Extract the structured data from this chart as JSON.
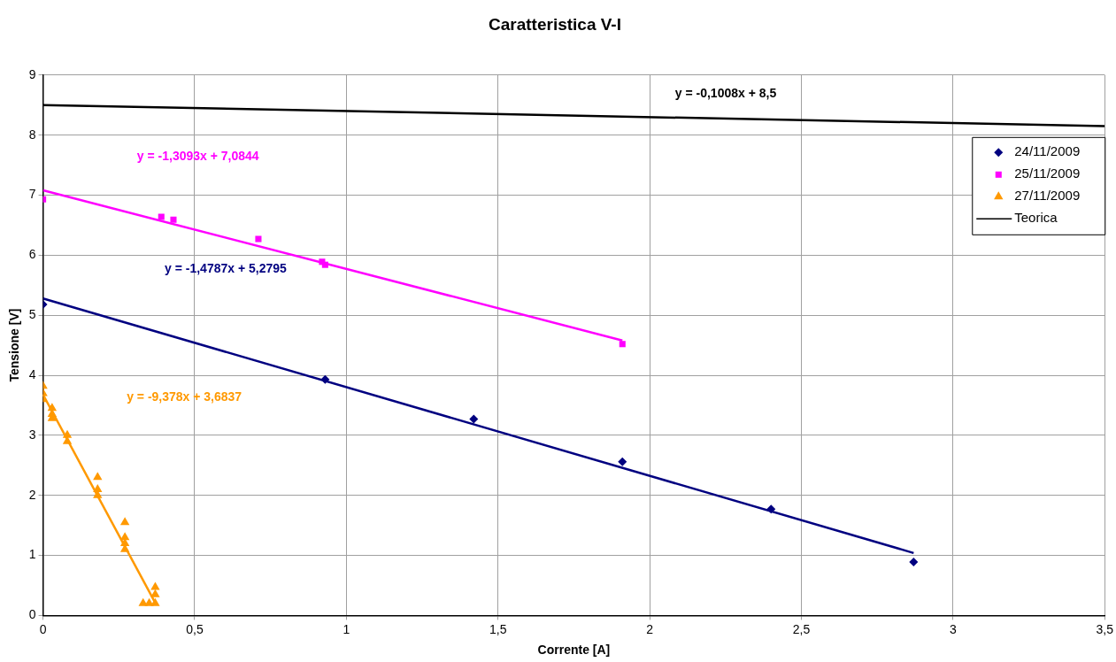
{
  "chart_data": {
    "type": "scatter",
    "title": "Caratteristica V-I",
    "xlabel": "Corrente [A]",
    "ylabel": "Tensione [V]",
    "xlim": [
      0,
      3.5
    ],
    "xticks": [
      0,
      {
        "value": 0.5,
        "label": "0,5"
      },
      1,
      {
        "value": 1.5,
        "label": "1,5"
      },
      2,
      {
        "value": 2.5,
        "label": "2,5"
      },
      3,
      {
        "value": 3.5,
        "label": "3,5"
      }
    ],
    "ylim": [
      0,
      9
    ],
    "yticks": [
      0,
      1,
      2,
      3,
      4,
      5,
      6,
      7,
      8,
      9
    ],
    "grid": true,
    "legend": "top right",
    "series": [
      {
        "name": "24/11/2009",
        "color": "#000080",
        "marker": "diamond",
        "x": [
          0,
          0.93,
          1.42,
          1.91,
          2.4,
          2.87
        ],
        "values": [
          5.18,
          3.93,
          3.27,
          2.56,
          1.77,
          0.89
        ]
      },
      {
        "name": "25/11/2009",
        "color": "#ff00ff",
        "marker": "square",
        "x": [
          0,
          0.39,
          0.43,
          0.71,
          0.92,
          0.93,
          1.91
        ],
        "values": [
          6.93,
          6.64,
          6.59,
          6.27,
          5.89,
          5.84,
          4.52
        ]
      },
      {
        "name": "27/11/2009",
        "color": "#ff9900",
        "marker": "triangle",
        "x": [
          0,
          0,
          0,
          0.03,
          0.03,
          0.03,
          0.08,
          0.08,
          0.18,
          0.18,
          0.18,
          0.27,
          0.27,
          0.27,
          0.27,
          0.33,
          0.35,
          0.37,
          0.37,
          0.37
        ],
        "values": [
          3.82,
          3.7,
          3.6,
          3.45,
          3.35,
          3.28,
          3.0,
          2.9,
          2.3,
          2.1,
          2.0,
          1.55,
          1.3,
          1.2,
          1.1,
          0.2,
          0.2,
          0.2,
          0.35,
          0.47
        ]
      },
      {
        "name": "Teorica",
        "type": "line",
        "color": "#000000",
        "marker": "none",
        "x": [
          0,
          3.5
        ],
        "values": [
          8.5,
          8.15
        ]
      },
      {
        "type": "line",
        "color": "#ff00ff",
        "marker": "none",
        "x": [
          0,
          1.91
        ],
        "values": [
          7.08,
          4.58
        ]
      },
      {
        "type": "line",
        "color": "#000080",
        "marker": "none",
        "x": [
          0,
          2.87
        ],
        "values": [
          5.28,
          1.04
        ]
      },
      {
        "type": "line",
        "color": "#ff9900",
        "marker": "none",
        "x": [
          0,
          0.37
        ],
        "values": [
          3.68,
          0.21
        ]
      }
    ],
    "annotations": [
      "y = -0,1008x + 8,5",
      "y = -1,3093x + 7,0844",
      "y = -1,4787x + 5,2795",
      "y = -9,378x + 3,6837"
    ]
  }
}
